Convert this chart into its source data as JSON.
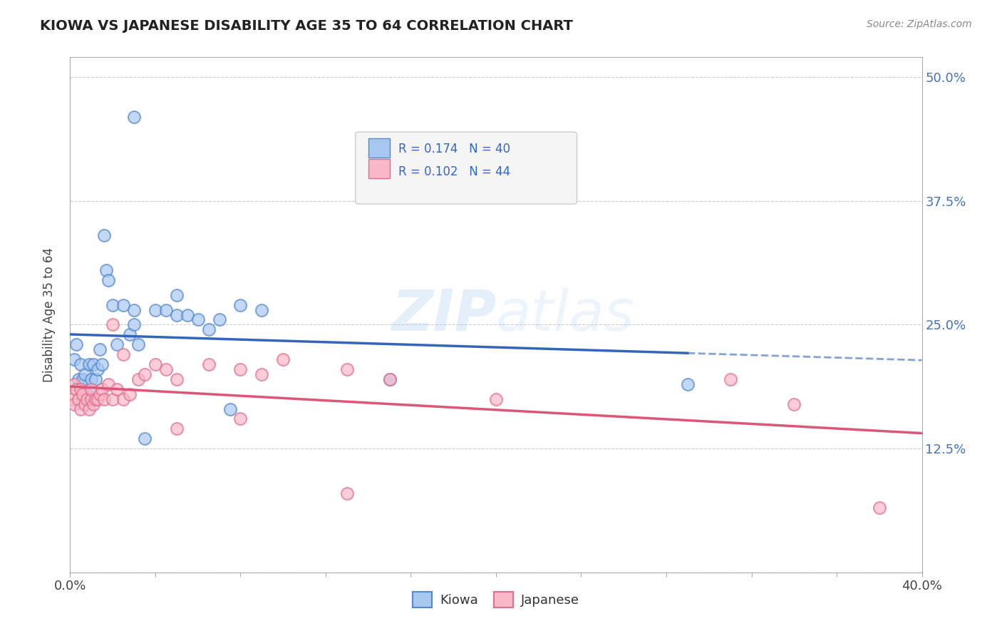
{
  "title": "KIOWA VS JAPANESE DISABILITY AGE 35 TO 64 CORRELATION CHART",
  "source": "Source: ZipAtlas.com",
  "ylabel": "Disability Age 35 to 64",
  "xlim": [
    0.0,
    0.4
  ],
  "ylim": [
    0.0,
    0.52
  ],
  "xticks": [
    0.0,
    0.04,
    0.08,
    0.12,
    0.16,
    0.2,
    0.24,
    0.28,
    0.32,
    0.36,
    0.4
  ],
  "ytick_vals": [
    0.0,
    0.125,
    0.25,
    0.375,
    0.5
  ],
  "kiowa_R": 0.174,
  "kiowa_N": 40,
  "japanese_R": 0.102,
  "japanese_N": 44,
  "kiowa_color": "#a8c8f0",
  "japanese_color": "#f8b8c8",
  "kiowa_edge_color": "#5588cc",
  "japanese_edge_color": "#e07090",
  "kiowa_line_color": "#3366bb",
  "japanese_line_color": "#dd5577",
  "background_color": "#ffffff",
  "kiowa_x": [
    0.002,
    0.003,
    0.004,
    0.005,
    0.006,
    0.007,
    0.008,
    0.009,
    0.01,
    0.01,
    0.011,
    0.012,
    0.013,
    0.014,
    0.015,
    0.016,
    0.017,
    0.018,
    0.02,
    0.022,
    0.025,
    0.028,
    0.03,
    0.03,
    0.032,
    0.035,
    0.04,
    0.045,
    0.05,
    0.055,
    0.06,
    0.065,
    0.07,
    0.075,
    0.08,
    0.09,
    0.03,
    0.05,
    0.15,
    0.29
  ],
  "kiowa_y": [
    0.215,
    0.23,
    0.195,
    0.21,
    0.195,
    0.2,
    0.18,
    0.21,
    0.175,
    0.195,
    0.21,
    0.195,
    0.205,
    0.225,
    0.21,
    0.34,
    0.305,
    0.295,
    0.27,
    0.23,
    0.27,
    0.24,
    0.265,
    0.25,
    0.23,
    0.135,
    0.265,
    0.265,
    0.26,
    0.26,
    0.255,
    0.245,
    0.255,
    0.165,
    0.27,
    0.265,
    0.46,
    0.28,
    0.195,
    0.19
  ],
  "japanese_x": [
    0.001,
    0.002,
    0.002,
    0.003,
    0.004,
    0.005,
    0.005,
    0.006,
    0.007,
    0.008,
    0.009,
    0.01,
    0.01,
    0.011,
    0.012,
    0.013,
    0.014,
    0.015,
    0.016,
    0.018,
    0.02,
    0.022,
    0.025,
    0.028,
    0.032,
    0.035,
    0.04,
    0.045,
    0.05,
    0.065,
    0.08,
    0.09,
    0.1,
    0.13,
    0.15,
    0.2,
    0.02,
    0.025,
    0.05,
    0.08,
    0.13,
    0.31,
    0.34,
    0.38
  ],
  "japanese_y": [
    0.175,
    0.17,
    0.19,
    0.185,
    0.175,
    0.165,
    0.185,
    0.18,
    0.17,
    0.175,
    0.165,
    0.175,
    0.185,
    0.17,
    0.175,
    0.175,
    0.18,
    0.185,
    0.175,
    0.19,
    0.175,
    0.185,
    0.175,
    0.18,
    0.195,
    0.2,
    0.21,
    0.205,
    0.195,
    0.21,
    0.205,
    0.2,
    0.215,
    0.205,
    0.195,
    0.175,
    0.25,
    0.22,
    0.145,
    0.155,
    0.08,
    0.195,
    0.17,
    0.065
  ]
}
